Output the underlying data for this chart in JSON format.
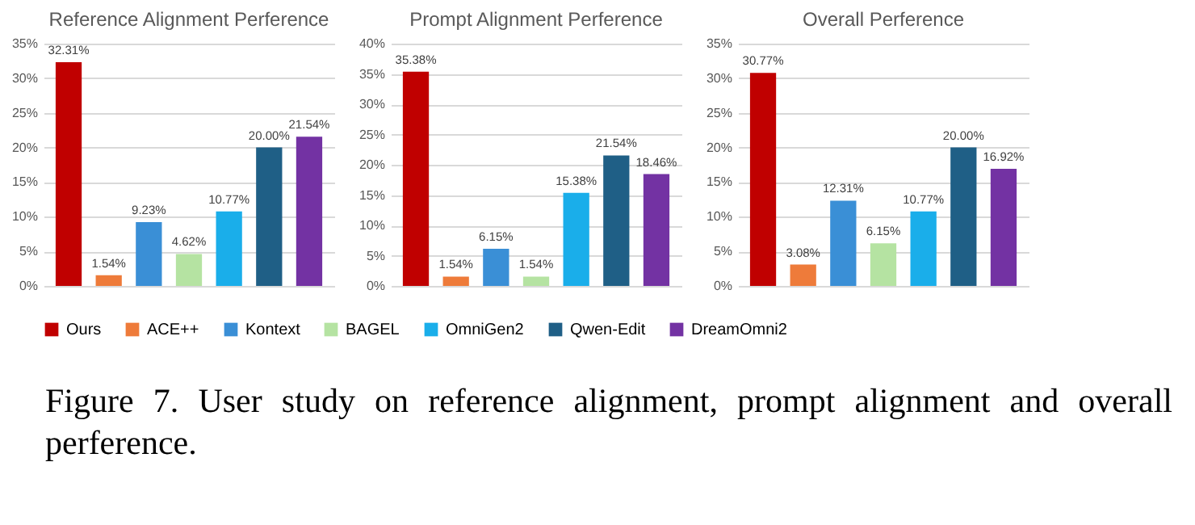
{
  "chart_data": [
    {
      "type": "bar",
      "title": "Reference Alignment Perference",
      "categories": [
        null
      ],
      "series": [
        {
          "name": "Ours",
          "color": "#c00000",
          "values": [
            32.31
          ],
          "value_labels": [
            "32.31%"
          ]
        },
        {
          "name": "ACE++",
          "color": "#ee7b3a",
          "values": [
            1.54
          ],
          "value_labels": [
            "1.54%"
          ]
        },
        {
          "name": "Kontext",
          "color": "#3a8fd6",
          "values": [
            9.23
          ],
          "value_labels": [
            "9.23%"
          ]
        },
        {
          "name": "BAGEL",
          "color": "#b5e3a2",
          "values": [
            4.62
          ],
          "value_labels": [
            "4.62%"
          ]
        },
        {
          "name": "OmniGen2",
          "color": "#1aaeea",
          "values": [
            10.77
          ],
          "value_labels": [
            "10.77%"
          ]
        },
        {
          "name": "Qwen-Edit",
          "color": "#1f5f86",
          "values": [
            20.0
          ],
          "value_labels": [
            "20.00%"
          ]
        },
        {
          "name": "DreamOmni2",
          "color": "#7332a3",
          "values": [
            21.54
          ],
          "value_labels": [
            "21.54%"
          ]
        }
      ],
      "ylim": [
        0,
        35
      ],
      "yticks": [
        {
          "value": 0,
          "label": "0%"
        },
        {
          "value": 5,
          "label": "5%"
        },
        {
          "value": 10,
          "label": "10%"
        },
        {
          "value": 15,
          "label": "15%"
        },
        {
          "value": 20,
          "label": "20%"
        },
        {
          "value": 25,
          "label": "25%"
        },
        {
          "value": 30,
          "label": "30%"
        },
        {
          "value": 35,
          "label": "35%"
        }
      ],
      "grid": "y",
      "legend": "bottom"
    },
    {
      "type": "bar",
      "title": "Prompt Alignment Perference",
      "categories": [
        null
      ],
      "series": [
        {
          "name": "Ours",
          "color": "#c00000",
          "values": [
            35.38
          ],
          "value_labels": [
            "35.38%"
          ]
        },
        {
          "name": "ACE++",
          "color": "#ee7b3a",
          "values": [
            1.54
          ],
          "value_labels": [
            "1.54%"
          ]
        },
        {
          "name": "Kontext",
          "color": "#3a8fd6",
          "values": [
            6.15
          ],
          "value_labels": [
            "6.15%"
          ]
        },
        {
          "name": "BAGEL",
          "color": "#b5e3a2",
          "values": [
            1.54
          ],
          "value_labels": [
            "1.54%"
          ]
        },
        {
          "name": "OmniGen2",
          "color": "#1aaeea",
          "values": [
            15.38
          ],
          "value_labels": [
            "15.38%"
          ]
        },
        {
          "name": "Qwen-Edit",
          "color": "#1f5f86",
          "values": [
            21.54
          ],
          "value_labels": [
            "21.54%"
          ]
        },
        {
          "name": "DreamOmni2",
          "color": "#7332a3",
          "values": [
            18.46
          ],
          "value_labels": [
            "18.46%"
          ]
        }
      ],
      "ylim": [
        0,
        40
      ],
      "yticks": [
        {
          "value": 0,
          "label": "0%"
        },
        {
          "value": 5,
          "label": "5%"
        },
        {
          "value": 10,
          "label": "10%"
        },
        {
          "value": 15,
          "label": "15%"
        },
        {
          "value": 20,
          "label": "20%"
        },
        {
          "value": 25,
          "label": "25%"
        },
        {
          "value": 30,
          "label": "30%"
        },
        {
          "value": 35,
          "label": "35%"
        },
        {
          "value": 40,
          "label": "40%"
        }
      ],
      "grid": "y",
      "legend": "bottom"
    },
    {
      "type": "bar",
      "title": "Overall Perference",
      "categories": [
        null
      ],
      "series": [
        {
          "name": "Ours",
          "color": "#c00000",
          "values": [
            30.77
          ],
          "value_labels": [
            "30.77%"
          ]
        },
        {
          "name": "ACE++",
          "color": "#ee7b3a",
          "values": [
            3.08
          ],
          "value_labels": [
            "3.08%"
          ]
        },
        {
          "name": "Kontext",
          "color": "#3a8fd6",
          "values": [
            12.31
          ],
          "value_labels": [
            "12.31%"
          ]
        },
        {
          "name": "BAGEL",
          "color": "#b5e3a2",
          "values": [
            6.15
          ],
          "value_labels": [
            "6.15%"
          ]
        },
        {
          "name": "OmniGen2",
          "color": "#1aaeea",
          "values": [
            10.77
          ],
          "value_labels": [
            "10.77%"
          ]
        },
        {
          "name": "Qwen-Edit",
          "color": "#1f5f86",
          "values": [
            20.0
          ],
          "value_labels": [
            "20.00%"
          ]
        },
        {
          "name": "DreamOmni2",
          "color": "#7332a3",
          "values": [
            16.92
          ],
          "value_labels": [
            "16.92%"
          ]
        }
      ],
      "ylim": [
        0,
        35
      ],
      "yticks": [
        {
          "value": 0,
          "label": "0%"
        },
        {
          "value": 5,
          "label": "5%"
        },
        {
          "value": 10,
          "label": "10%"
        },
        {
          "value": 15,
          "label": "15%"
        },
        {
          "value": 20,
          "label": "20%"
        },
        {
          "value": 25,
          "label": "25%"
        },
        {
          "value": 30,
          "label": "30%"
        },
        {
          "value": 35,
          "label": "35%"
        }
      ],
      "grid": "y",
      "legend": "bottom",
      "annotations": [
        "Figure 7.  User study on reference alignment, prompt alignment and overall perference."
      ]
    }
  ]
}
